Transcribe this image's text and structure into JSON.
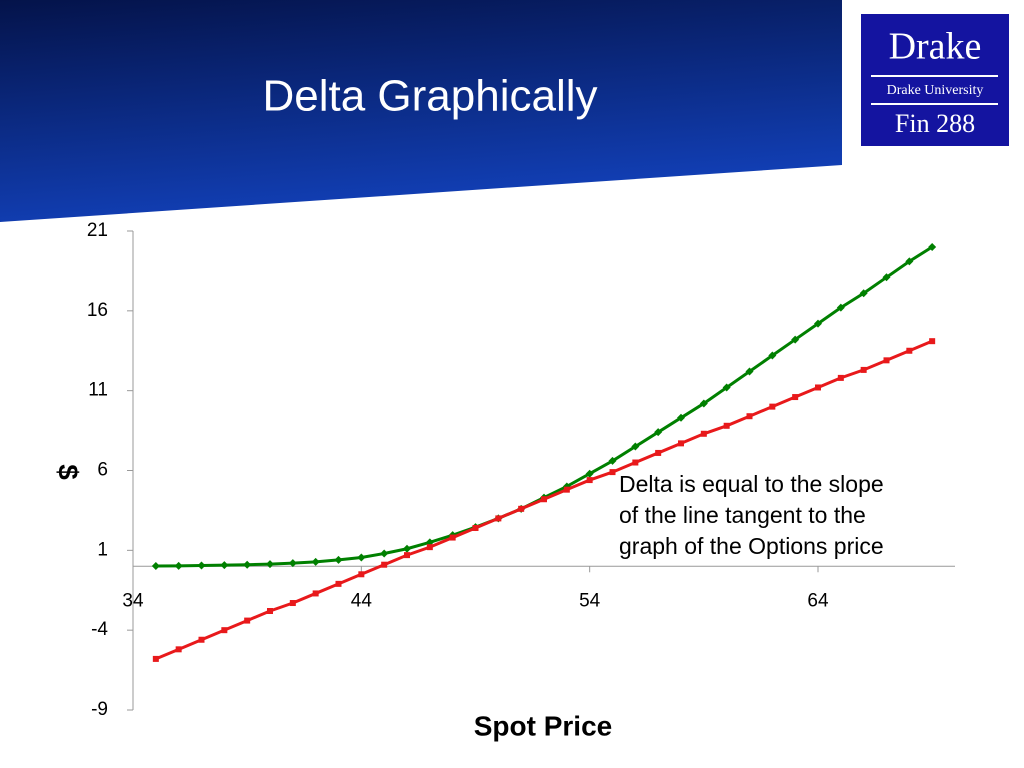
{
  "header": {
    "title": "Delta Graphically"
  },
  "logo": {
    "name": "Drake",
    "school": "Drake University",
    "course": "Fin 288"
  },
  "chart_data": {
    "type": "line",
    "xlabel": "Spot Price",
    "ylabel": "$",
    "annotation": [
      "Delta is equal to the slope",
      "of the line tangent to the",
      "graph of the Options price"
    ],
    "x": [
      35,
      36,
      37,
      38,
      39,
      40,
      41,
      42,
      43,
      44,
      45,
      46,
      47,
      48,
      49,
      50,
      51,
      52,
      53,
      54,
      55,
      56,
      57,
      58,
      59,
      60,
      61,
      62,
      63,
      64,
      65,
      66,
      67,
      68,
      69
    ],
    "series": [
      {
        "color": "#008000",
        "marker": "diamond",
        "values": [
          0.02,
          0.03,
          0.05,
          0.07,
          0.1,
          0.14,
          0.2,
          0.28,
          0.4,
          0.55,
          0.8,
          1.1,
          1.5,
          1.95,
          2.45,
          3.0,
          3.6,
          4.3,
          5.0,
          5.8,
          6.6,
          7.5,
          8.4,
          9.3,
          10.2,
          11.2,
          12.2,
          13.2,
          14.2,
          15.2,
          16.2,
          17.1,
          18.1,
          19.1,
          20.0
        ]
      },
      {
        "color": "#e8191b",
        "marker": "square",
        "values": [
          -5.8,
          -5.2,
          -4.6,
          -4.0,
          -3.4,
          -2.8,
          -2.3,
          -1.7,
          -1.1,
          -0.5,
          0.1,
          0.7,
          1.2,
          1.8,
          2.4,
          3.0,
          3.6,
          4.2,
          4.8,
          5.4,
          5.9,
          6.5,
          7.1,
          7.7,
          8.3,
          8.8,
          9.4,
          10.0,
          10.6,
          11.2,
          11.8,
          12.3,
          12.9,
          13.5,
          14.1
        ]
      }
    ],
    "xlim": [
      34,
      70
    ],
    "xticks": [
      34,
      44,
      54,
      64
    ],
    "ylim": [
      -9,
      21
    ],
    "yticks": [
      -9,
      -4,
      1,
      6,
      11,
      16,
      21
    ]
  }
}
